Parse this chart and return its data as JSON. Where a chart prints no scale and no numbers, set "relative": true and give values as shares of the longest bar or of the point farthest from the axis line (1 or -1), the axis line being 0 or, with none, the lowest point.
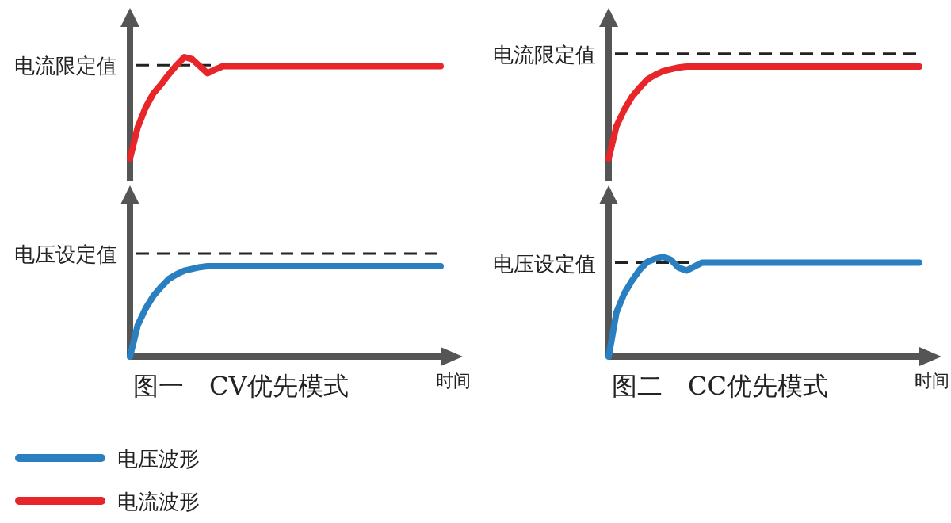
{
  "chart_data": [
    {
      "type": "line",
      "relative": true,
      "categories": [
        null,
        null,
        null,
        null,
        null,
        null,
        null,
        null,
        null,
        null,
        null,
        null,
        null,
        null,
        null,
        null,
        null,
        null,
        null,
        null,
        null,
        null,
        null,
        null,
        null,
        null,
        null,
        null,
        null,
        null,
        null,
        null,
        null,
        null,
        null,
        null,
        null,
        null,
        null,
        null,
        null
      ],
      "series": [
        {
          "name": "电流波形",
          "color": "#e8262a",
          "values": [
            0,
            0.31,
            0.5,
            0.64,
            0.73,
            0.83,
            0.92,
            1,
            0.98,
            0.91,
            0.84,
            0.88,
            0.91,
            0.91,
            0.91,
            0.91,
            0.91,
            0.91,
            0.91,
            0.91,
            0.91,
            0.91,
            0.91,
            0.91,
            0.91,
            0.91,
            0.91,
            0.91,
            0.91,
            0.91,
            0.91,
            0.91,
            0.91,
            0.91,
            0.91,
            0.91,
            0.91,
            0.91,
            0.91,
            0.91,
            0.91
          ]
        }
      ],
      "ref_lines": [
        {
          "axis": "y",
          "value": 0.92,
          "label": "电流限定值",
          "color": "#222222",
          "line_style": "dashed"
        }
      ],
      "legend": "bottom left"
    },
    {
      "type": "line",
      "relative": true,
      "title": "图一　CV优先模式",
      "xlabel": "时间",
      "categories": [
        null,
        null,
        null,
        null,
        null,
        null,
        null,
        null,
        null,
        null,
        null,
        null,
        null,
        null,
        null,
        null,
        null,
        null,
        null,
        null,
        null,
        null,
        null,
        null,
        null,
        null,
        null,
        null,
        null,
        null,
        null,
        null,
        null,
        null,
        null,
        null,
        null,
        null,
        null,
        null,
        null
      ],
      "series": [
        {
          "name": "电压波形",
          "color": "#2a7fc1",
          "values": [
            0,
            0.35,
            0.53,
            0.67,
            0.77,
            0.86,
            0.91,
            0.95,
            0.97,
            0.99,
            1,
            1,
            1,
            1,
            1,
            1,
            1,
            1,
            1,
            1,
            1,
            1,
            1,
            1,
            1,
            1,
            1,
            1,
            1,
            1,
            1,
            1,
            1,
            1,
            1,
            1,
            1,
            1,
            1,
            1,
            1
          ]
        }
      ],
      "ref_lines": [
        {
          "axis": "y",
          "value": 1.14,
          "label": "电压设定值",
          "color": "#222222",
          "line_style": "dashed"
        }
      ],
      "legend": "bottom left"
    },
    {
      "type": "line",
      "relative": true,
      "categories": [
        null,
        null,
        null,
        null,
        null,
        null,
        null,
        null,
        null,
        null,
        null,
        null,
        null,
        null,
        null,
        null,
        null,
        null,
        null,
        null,
        null,
        null,
        null,
        null,
        null,
        null,
        null,
        null,
        null,
        null,
        null,
        null,
        null,
        null,
        null,
        null,
        null,
        null,
        null,
        null,
        null
      ],
      "series": [
        {
          "color": "#e8262a",
          "values": [
            0,
            0.35,
            0.53,
            0.67,
            0.77,
            0.86,
            0.91,
            0.95,
            0.97,
            0.99,
            1,
            1,
            1,
            1,
            1,
            1,
            1,
            1,
            1,
            1,
            1,
            1,
            1,
            1,
            1,
            1,
            1,
            1,
            1,
            1,
            1,
            1,
            1,
            1,
            1,
            1,
            1,
            1,
            1,
            1,
            1
          ]
        }
      ],
      "ref_lines": [
        {
          "axis": "y",
          "value": 1.14,
          "label": "电流限定值",
          "color": "#222222",
          "line_style": "dashed"
        }
      ]
    },
    {
      "type": "line",
      "relative": true,
      "title": "图二　CC优先模式",
      "xlabel": "时间",
      "categories": [
        null,
        null,
        null,
        null,
        null,
        null,
        null,
        null,
        null,
        null,
        null,
        null,
        null,
        null,
        null,
        null,
        null,
        null,
        null,
        null,
        null,
        null,
        null,
        null,
        null,
        null,
        null,
        null,
        null,
        null,
        null,
        null,
        null,
        null,
        null,
        null,
        null,
        null,
        null,
        null,
        null
      ],
      "series": [
        {
          "color": "#2a7fc1",
          "values": [
            0,
            0.44,
            0.63,
            0.76,
            0.87,
            0.95,
            0.98,
            1,
            0.97,
            0.89,
            0.86,
            0.9,
            0.94,
            0.94,
            0.94,
            0.94,
            0.94,
            0.94,
            0.94,
            0.94,
            0.94,
            0.94,
            0.94,
            0.94,
            0.94,
            0.94,
            0.94,
            0.94,
            0.94,
            0.94,
            0.94,
            0.94,
            0.94,
            0.94,
            0.94,
            0.94,
            0.94,
            0.94,
            0.94,
            0.94,
            0.94
          ]
        }
      ],
      "ref_lines": [
        {
          "axis": "y",
          "value": 0.94,
          "label": "电压设定值",
          "color": "#222222",
          "line_style": "dashed"
        }
      ]
    }
  ]
}
